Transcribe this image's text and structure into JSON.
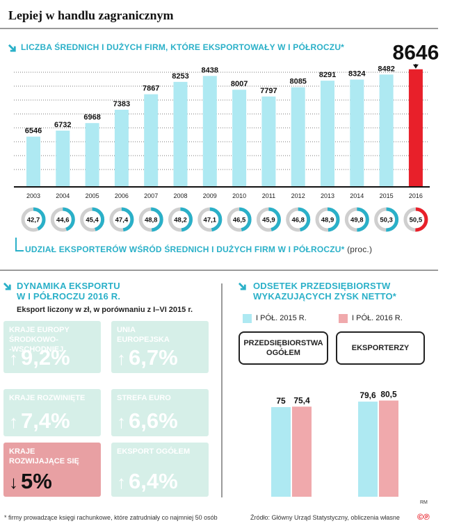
{
  "title": "Lepiej w handlu zagranicznym",
  "section1": {
    "heading": "LICZBA ŚREDNICH I DUŻYCH FIRM, KTÓRE EKSPORTOWAŁY W I PÓŁROCZU*",
    "highlight_color": "#e8202a",
    "bar_color": "#aee9f2"
  },
  "section2": {
    "heading": "UDZIAŁ EKSPORTERÓW WŚRÓD ŚREDNICH I DUŻYCH FIRM W I PÓŁROCZU*",
    "unit": "(proc.)"
  },
  "section3": {
    "heading_line1": "DYNAMIKA EKSPORTU",
    "heading_line2": "W I PÓŁROCZU 2016 R.",
    "subtitle": "Eksport liczony w zł, w porównaniu z I–VI 2015 r.",
    "tiles": [
      {
        "label_lines": [
          "KRAJE EUROPY",
          "ŚRODKOWO-",
          "-WSCHODNIEJ"
        ],
        "value": "9,2%",
        "direction": "up"
      },
      {
        "label_lines": [
          "UNIA",
          "EUROPEJSKA"
        ],
        "value": "6,7%",
        "direction": "up"
      },
      {
        "label_lines": [
          "KRAJE ROZWINIĘTE"
        ],
        "value": "7,4%",
        "direction": "up"
      },
      {
        "label_lines": [
          "STREFA EURO"
        ],
        "value": "6,6%",
        "direction": "up"
      },
      {
        "label_lines": [
          "KRAJE",
          "ROZWIJAJĄCE SIĘ"
        ],
        "value": "5%",
        "direction": "down"
      },
      {
        "label_lines": [
          "EKSPORT OGÓŁEM"
        ],
        "value": "6,4%",
        "direction": "up"
      }
    ]
  },
  "section4": {
    "heading_line1": "ODSETEK PRZEDSIĘBIORSTW",
    "heading_line2": "WYKAZUJĄCYCH ZYSK NETTO*",
    "legend": [
      {
        "label": "I PÓŁ. 2015 R.",
        "color": "#aee9f2"
      },
      {
        "label": "I PÓŁ. 2016 R.",
        "color": "#f0a9ac"
      }
    ],
    "group1_lines": [
      "PRZEDSIĘBIORSTWA",
      "OGÓŁEM"
    ],
    "group2": "EKSPORTERZY"
  },
  "footer": {
    "footnote": "* firmy prowadzące księgi rachunkowe, które zatrudniały co najmniej 50 osób",
    "source": "Źródło: Główny Urząd Statystyczny, obliczenia własne",
    "author": "RM",
    "logo": "©℗"
  },
  "chart_data": [
    {
      "type": "bar",
      "categories": [
        "2003",
        "2004",
        "2005",
        "2006",
        "2007",
        "2008",
        "2009",
        "2010",
        "2011",
        "2012",
        "2013",
        "2014",
        "2015",
        "2016"
      ],
      "values": [
        6546,
        6732,
        6968,
        7383,
        7867,
        8253,
        8438,
        8007,
        7797,
        8085,
        8291,
        8324,
        8482,
        8646
      ],
      "labels": [
        "6546",
        "6732",
        "6968",
        "7383",
        "7867",
        "8253",
        "8438",
        "8007",
        "7797",
        "8085",
        "8291",
        "8324",
        "8482",
        "8646"
      ],
      "title": "LICZBA ŚREDNICH I DUŻYCH FIRM, KTÓRE EKSPORTOWAŁY W I PÓŁROCZU*",
      "grid": true
    },
    {
      "type": "pie",
      "categories": [
        "2003",
        "2004",
        "2005",
        "2006",
        "2007",
        "2008",
        "2009",
        "2010",
        "2011",
        "2012",
        "2013",
        "2014",
        "2015",
        "2016"
      ],
      "values": [
        42.7,
        44.6,
        45.4,
        47.4,
        48.8,
        48.2,
        47.1,
        46.5,
        45.9,
        46.8,
        48.9,
        49.8,
        50.3,
        50.5
      ],
      "labels": [
        "42,7",
        "44,6",
        "45,4",
        "47,4",
        "48,8",
        "48,2",
        "47,1",
        "46,5",
        "45,9",
        "46,8",
        "48,9",
        "49,8",
        "50,3",
        "50,5"
      ],
      "title": "UDZIAŁ EKSPORTERÓW WŚRÓD ŚREDNICH I DUŻYCH FIRM W I PÓŁROCZU*",
      "unit": "(proc.)"
    },
    {
      "type": "bar",
      "categories": [
        "PRZEDSIĘBIORSTWA OGÓŁEM",
        "EKSPORTERZY"
      ],
      "series": [
        {
          "name": "I PÓŁ. 2015 R.",
          "values": [
            75,
            79.6
          ],
          "labels": [
            "75",
            "79,6"
          ]
        },
        {
          "name": "I PÓŁ. 2016 R.",
          "values": [
            75.4,
            80.5
          ],
          "labels": [
            "75,4",
            "80,5"
          ]
        }
      ],
      "title": "ODSETEK PRZEDSIĘBIORSTW WYKAZUJĄCYCH ZYSK NETTO*"
    }
  ]
}
